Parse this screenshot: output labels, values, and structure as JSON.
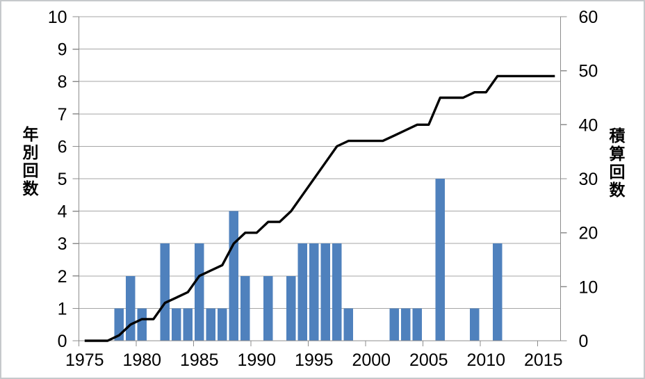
{
  "chart_data": {
    "type": "combo",
    "title": "",
    "categories": [
      1975,
      1976,
      1977,
      1978,
      1979,
      1980,
      1981,
      1982,
      1983,
      1984,
      1985,
      1986,
      1987,
      1988,
      1989,
      1990,
      1991,
      1992,
      1993,
      1994,
      1995,
      1996,
      1997,
      1998,
      1999,
      2000,
      2001,
      2002,
      2003,
      2004,
      2005,
      2006,
      2007,
      2008,
      2009,
      2010,
      2011,
      2012,
      2013,
      2014,
      2015,
      2016
    ],
    "series": [
      {
        "name": "年別回数",
        "type": "bar",
        "axis": "left",
        "color": "#4f81bd",
        "values": [
          0,
          0,
          0,
          1,
          2,
          1,
          0,
          3,
          1,
          1,
          3,
          1,
          1,
          4,
          2,
          0,
          2,
          0,
          2,
          3,
          3,
          3,
          3,
          1,
          0,
          0,
          0,
          1,
          1,
          1,
          0,
          5,
          0,
          0,
          1,
          0,
          3,
          0,
          0,
          0,
          0,
          0
        ]
      },
      {
        "name": "積算回数",
        "type": "line",
        "axis": "right",
        "color": "#000000",
        "values": [
          0,
          0,
          0,
          1,
          3,
          4,
          4,
          7,
          8,
          9,
          12,
          13,
          14,
          18,
          20,
          20,
          22,
          22,
          24,
          27,
          30,
          33,
          36,
          37,
          37,
          37,
          37,
          38,
          39,
          40,
          40,
          45,
          45,
          45,
          46,
          46,
          49,
          49,
          49,
          49,
          49,
          49
        ]
      }
    ],
    "axes": {
      "left": {
        "title": "年別回数",
        "min": 0,
        "max": 10,
        "step": 1,
        "tick_labels": [
          "0",
          "1",
          "2",
          "3",
          "4",
          "5",
          "6",
          "7",
          "8",
          "9",
          "10"
        ]
      },
      "right": {
        "title": "積算回数",
        "min": 0,
        "max": 60,
        "step": 10,
        "tick_labels": [
          "0",
          "10",
          "20",
          "30",
          "40",
          "50",
          "60"
        ]
      },
      "x": {
        "tick_years": [
          1975,
          1980,
          1985,
          1990,
          1995,
          2000,
          2005,
          2010,
          2015
        ],
        "tick_labels": [
          "1975",
          "1980",
          "1985",
          "1990",
          "1995",
          "2000",
          "2005",
          "2010",
          "2015"
        ]
      }
    },
    "grid": {
      "horizontal": true,
      "vertical": false
    },
    "legend": {
      "visible": false
    },
    "colors": {
      "bar": "#4f81bd",
      "line": "#000000",
      "gridline": "#a6a6a6",
      "axis": "#8c8c8c",
      "text": "#000000",
      "border": "#c6c9cc"
    }
  }
}
